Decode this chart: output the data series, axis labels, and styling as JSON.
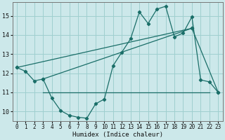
{
  "xlabel": "Humidex (Indice chaleur)",
  "bg_color": "#cce8ea",
  "grid_color": "#9fcfcf",
  "line_color": "#1a6e68",
  "xlim": [
    -0.5,
    23.5
  ],
  "ylim": [
    9.5,
    15.7
  ],
  "yticks": [
    10,
    11,
    12,
    13,
    14,
    15
  ],
  "xticks": [
    0,
    1,
    2,
    3,
    4,
    5,
    6,
    7,
    8,
    9,
    10,
    11,
    12,
    13,
    14,
    15,
    16,
    17,
    18,
    19,
    20,
    21,
    22,
    23
  ],
  "series1_x": [
    0,
    1,
    2,
    3,
    4,
    5,
    6,
    7,
    8,
    9,
    10,
    11,
    12,
    13,
    14,
    15,
    16,
    17,
    18,
    19,
    20,
    21,
    22,
    23
  ],
  "series1_y": [
    12.3,
    12.1,
    11.6,
    11.7,
    10.7,
    10.05,
    9.8,
    9.7,
    9.65,
    10.4,
    10.65,
    12.4,
    13.1,
    13.8,
    15.2,
    14.6,
    15.35,
    15.5,
    13.9,
    14.1,
    14.95,
    11.65,
    11.55,
    11.0
  ],
  "series2_x": [
    0,
    20,
    23
  ],
  "series2_y": [
    12.3,
    14.35,
    11.0
  ],
  "series3_x": [
    3,
    20
  ],
  "series3_y": [
    11.7,
    14.35
  ],
  "series4_x": [
    3,
    22
  ],
  "series4_y": [
    11.0,
    11.0
  ]
}
